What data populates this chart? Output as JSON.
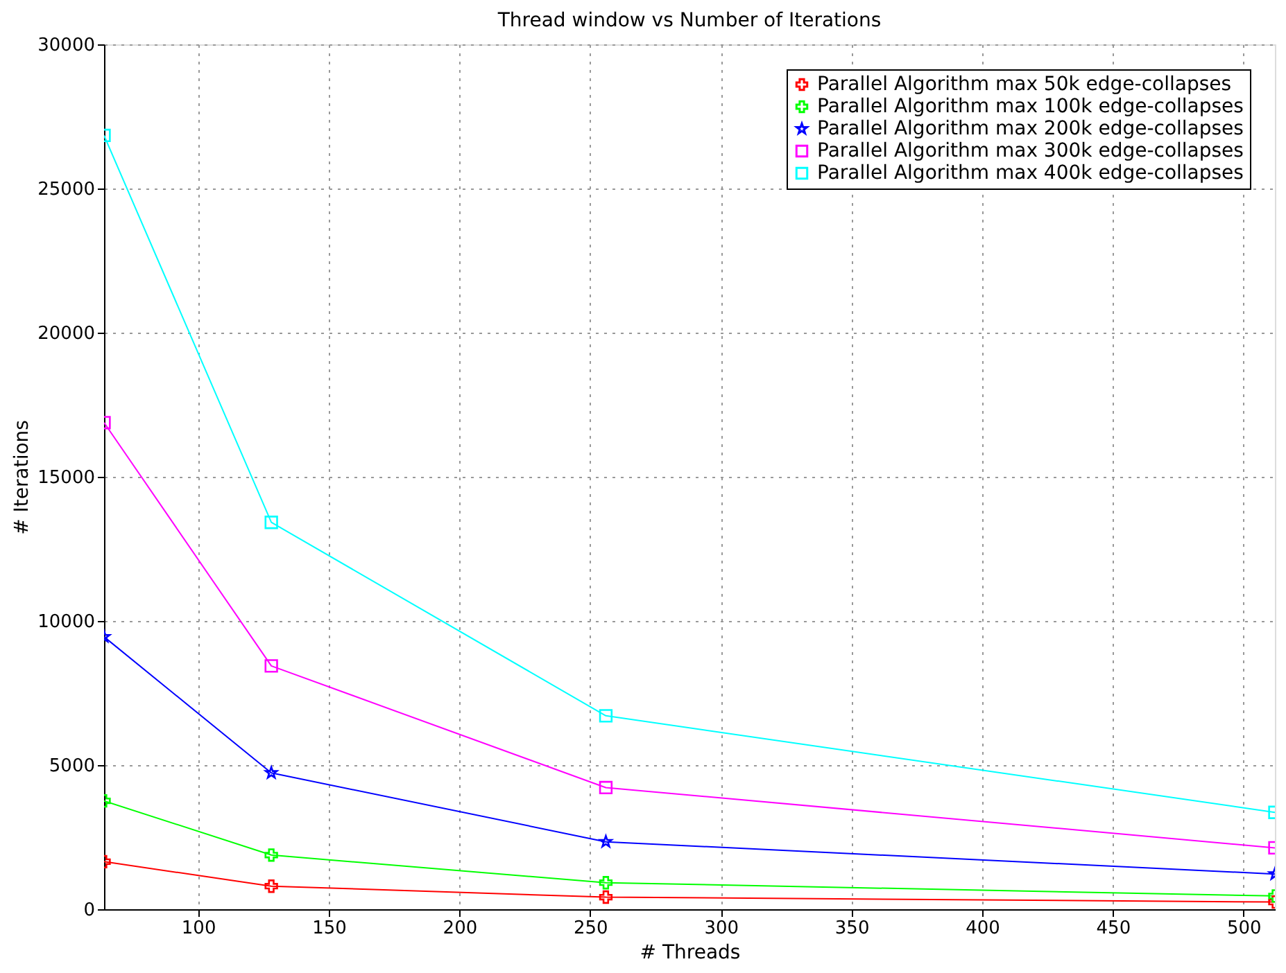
{
  "chart_data": {
    "type": "line",
    "title": "Thread window vs Number of Iterations",
    "xlabel": "# Threads",
    "ylabel": "# Iterations",
    "x": [
      64,
      128,
      256,
      512
    ],
    "series": [
      {
        "name": "Parallel Algorithm max 50k edge-collapses",
        "color": "#ff0000",
        "marker": "cross",
        "values": [
          1650,
          800,
          420,
          250
        ]
      },
      {
        "name": "Parallel Algorithm max 100k edge-collapses",
        "color": "#00ff00",
        "marker": "cross",
        "values": [
          3760,
          1880,
          920,
          460
        ]
      },
      {
        "name": "Parallel Algorithm max 200k edge-collapses",
        "color": "#0000ff",
        "marker": "star",
        "values": [
          9450,
          4730,
          2340,
          1220
        ]
      },
      {
        "name": "Parallel Algorithm max 300k edge-collapses",
        "color": "#ff00ff",
        "marker": "square",
        "values": [
          16880,
          8440,
          4220,
          2130
        ]
      },
      {
        "name": "Parallel Algorithm max 400k edge-collapses",
        "color": "#00ffff",
        "marker": "square",
        "values": [
          26840,
          13420,
          6710,
          3360
        ]
      }
    ],
    "xlim": [
      64,
      512
    ],
    "xticks": [
      100,
      150,
      200,
      250,
      300,
      350,
      400,
      450,
      500
    ],
    "ylim": [
      0,
      30000
    ],
    "yticks": [
      0,
      5000,
      10000,
      15000,
      20000,
      25000,
      30000
    ],
    "grid": true,
    "legend": "top right",
    "line_style": "solid"
  }
}
